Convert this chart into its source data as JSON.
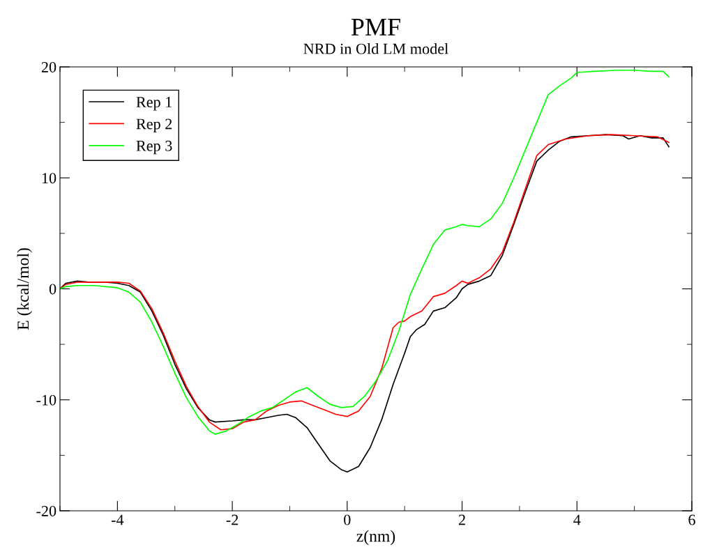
{
  "chart_data": {
    "type": "line",
    "title": "PMF",
    "subtitle": "NRD in Old LM model",
    "xlabel": "z(nm)",
    "ylabel": "E (kcal/mol)",
    "xlim": [
      -5,
      6
    ],
    "xticks": [
      -4,
      -2,
      0,
      2,
      4,
      6
    ],
    "ylim": [
      -20,
      20
    ],
    "yticks": [
      -20,
      -10,
      0,
      10,
      20
    ],
    "legend": "top left",
    "grid": false,
    "series": [
      {
        "name": "Rep 1",
        "color": "#000000",
        "x": [
          -5,
          -4.9,
          -4.7,
          -4.5,
          -4.2,
          -4.0,
          -3.8,
          -3.6,
          -3.4,
          -3.2,
          -3.0,
          -2.8,
          -2.6,
          -2.4,
          -2.3,
          -2.0,
          -1.8,
          -1.6,
          -1.4,
          -1.2,
          -1.05,
          -0.9,
          -0.7,
          -0.5,
          -0.3,
          -0.1,
          0.0,
          0.2,
          0.4,
          0.6,
          0.8,
          1.0,
          1.1,
          1.2,
          1.35,
          1.5,
          1.7,
          1.9,
          2.0,
          2.1,
          2.3,
          2.5,
          2.7,
          2.9,
          3.1,
          3.3,
          3.5,
          3.7,
          3.9,
          4.2,
          4.5,
          4.8,
          4.9,
          5.1,
          5.3,
          5.5,
          5.6
        ],
        "values": [
          0,
          0.5,
          0.7,
          0.6,
          0.6,
          0.5,
          0.3,
          -0.3,
          -2.0,
          -4.2,
          -6.8,
          -9.0,
          -10.7,
          -11.8,
          -12.0,
          -11.9,
          -11.8,
          -11.8,
          -11.6,
          -11.4,
          -11.3,
          -11.6,
          -12.5,
          -14.0,
          -15.5,
          -16.3,
          -16.5,
          -16.0,
          -14.3,
          -11.8,
          -8.6,
          -5.8,
          -4.3,
          -3.7,
          -3.2,
          -2.0,
          -1.7,
          -0.8,
          0.0,
          0.4,
          0.7,
          1.2,
          3.0,
          5.8,
          8.7,
          11.5,
          12.5,
          13.3,
          13.7,
          13.8,
          13.9,
          13.8,
          13.5,
          13.8,
          13.6,
          13.6,
          12.8
        ]
      },
      {
        "name": "Rep 2",
        "color": "#ff0000",
        "x": [
          -5,
          -4.9,
          -4.7,
          -4.4,
          -4.0,
          -3.8,
          -3.6,
          -3.4,
          -3.2,
          -3.0,
          -2.8,
          -2.6,
          -2.4,
          -2.2,
          -2.0,
          -1.8,
          -1.6,
          -1.4,
          -1.2,
          -1.0,
          -0.8,
          -0.6,
          -0.4,
          -0.2,
          0.0,
          0.2,
          0.4,
          0.6,
          0.8,
          0.9,
          1.0,
          1.1,
          1.3,
          1.5,
          1.7,
          1.9,
          2.0,
          2.1,
          2.3,
          2.5,
          2.7,
          2.9,
          3.1,
          3.3,
          3.5,
          3.8,
          4.2,
          4.6,
          5.0,
          5.4,
          5.6
        ],
        "values": [
          0,
          0.4,
          0.6,
          0.6,
          0.6,
          0.5,
          -0.2,
          -1.8,
          -4.0,
          -6.5,
          -8.8,
          -10.6,
          -12.0,
          -12.7,
          -12.6,
          -12.0,
          -11.8,
          -11.0,
          -10.5,
          -10.2,
          -10.1,
          -10.5,
          -10.9,
          -11.3,
          -11.5,
          -11.0,
          -9.7,
          -7.2,
          -3.5,
          -3.0,
          -2.9,
          -2.5,
          -2.0,
          -0.7,
          -0.4,
          0.3,
          0.7,
          0.5,
          1.0,
          1.8,
          3.3,
          6.0,
          9.0,
          12.0,
          13.0,
          13.5,
          13.8,
          13.9,
          13.8,
          13.7,
          13.2
        ]
      },
      {
        "name": "Rep 3",
        "color": "#00ff00",
        "x": [
          -5,
          -4.9,
          -4.7,
          -4.4,
          -4.0,
          -3.8,
          -3.6,
          -3.4,
          -3.2,
          -3.0,
          -2.8,
          -2.6,
          -2.4,
          -2.3,
          -2.1,
          -1.9,
          -1.7,
          -1.5,
          -1.3,
          -1.1,
          -0.9,
          -0.7,
          -0.5,
          -0.3,
          -0.1,
          0.1,
          0.3,
          0.5,
          0.7,
          0.9,
          1.1,
          1.3,
          1.5,
          1.7,
          1.9,
          2.0,
          2.1,
          2.3,
          2.5,
          2.7,
          2.9,
          3.1,
          3.3,
          3.5,
          3.7,
          3.9,
          4.0,
          4.3,
          4.7,
          5.0,
          5.3,
          5.5,
          5.6
        ],
        "values": [
          0,
          0.2,
          0.3,
          0.3,
          0.1,
          -0.3,
          -1.2,
          -3.0,
          -5.2,
          -7.6,
          -9.8,
          -11.5,
          -12.8,
          -13.1,
          -12.8,
          -12.2,
          -11.5,
          -11.0,
          -10.7,
          -10.0,
          -9.3,
          -8.9,
          -9.7,
          -10.4,
          -10.7,
          -10.6,
          -9.7,
          -8.3,
          -6.5,
          -3.8,
          -0.5,
          1.8,
          4.0,
          5.3,
          5.6,
          5.8,
          5.7,
          5.6,
          6.3,
          7.7,
          10.0,
          12.5,
          15.0,
          17.5,
          18.3,
          19.0,
          19.5,
          19.6,
          19.7,
          19.7,
          19.6,
          19.6,
          19.1
        ]
      }
    ]
  }
}
